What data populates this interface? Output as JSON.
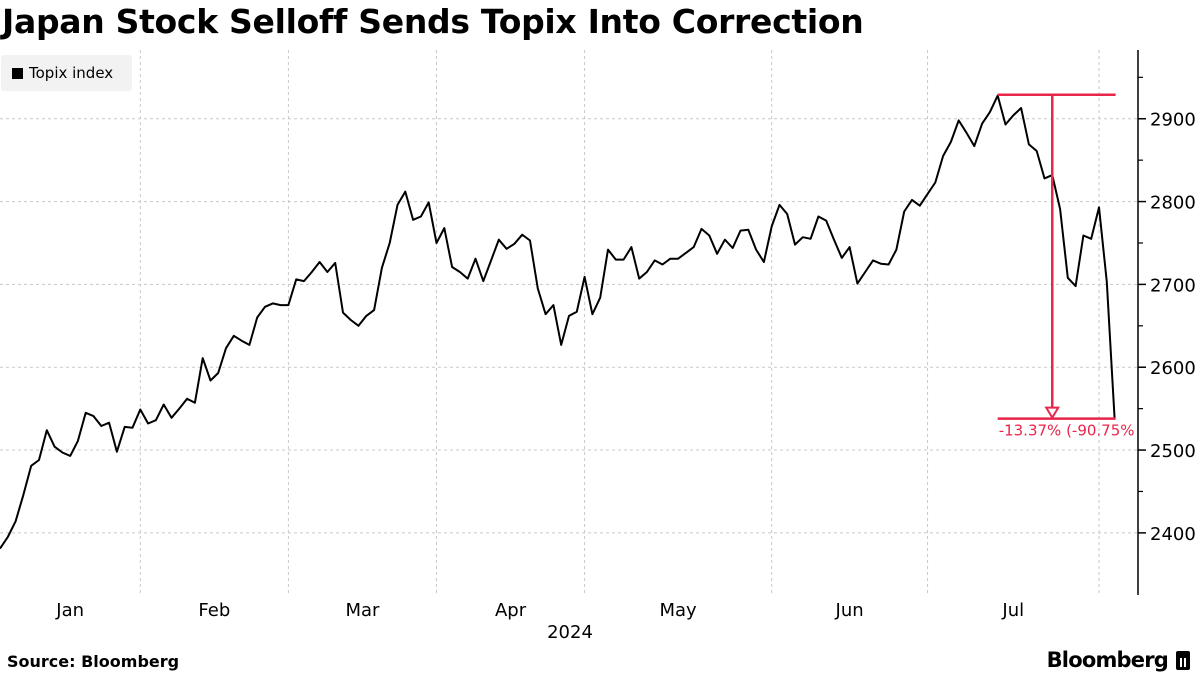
{
  "title": "Japan Stock Selloff Sends Topix Into Correction",
  "source": "Source: Bloomberg",
  "logo": "Bloomberg",
  "colors": {
    "line": "#000000",
    "annotation": "#e8254a",
    "grid": "#c8c8c8",
    "legend_bg": "#f2f2f2"
  },
  "chart_data": {
    "type": "line",
    "title": "Japan Stock Selloff Sends Topix Into Correction",
    "xlabel": "2024",
    "ylabel": "",
    "legend": {
      "entries": [
        "Topix index"
      ],
      "placement": "top-left"
    },
    "grid": true,
    "ylim": [
      2325,
      2983
    ],
    "xlim": [
      0,
      146
    ],
    "y_ticks": [
      2400,
      2500,
      2600,
      2700,
      2800,
      2900
    ],
    "y_minor_ticks": [
      2450,
      2550,
      2650,
      2750,
      2850,
      2950
    ],
    "month_boundaries": [
      18,
      37,
      56,
      75,
      99,
      119,
      141
    ],
    "month_labels": [
      {
        "label": "Jan",
        "from": 0,
        "to": 18
      },
      {
        "label": "Feb",
        "from": 18,
        "to": 37
      },
      {
        "label": "Mar",
        "from": 37,
        "to": 56
      },
      {
        "label": "Apr",
        "from": 56,
        "to": 75
      },
      {
        "label": "May",
        "from": 75,
        "to": 99
      },
      {
        "label": "Jun",
        "from": 99,
        "to": 119
      },
      {
        "label": "Jul",
        "from": 119,
        "to": 141
      }
    ],
    "series": [
      {
        "name": "Topix index",
        "values": [
          2381,
          2395,
          2414,
          2446,
          2481,
          2488,
          2524,
          2504,
          2497,
          2493,
          2511,
          2545,
          2541,
          2529,
          2533,
          2498,
          2528,
          2527,
          2549,
          2532,
          2536,
          2555,
          2539,
          2550,
          2562,
          2557,
          2611,
          2584,
          2593,
          2623,
          2638,
          2632,
          2627,
          2660,
          2673,
          2677,
          2675,
          2675,
          2706,
          2704,
          2715,
          2727,
          2715,
          2726,
          2666,
          2657,
          2650,
          2662,
          2669,
          2720,
          2750,
          2796,
          2812,
          2778,
          2782,
          2799,
          2750,
          2768,
          2721,
          2715,
          2707,
          2731,
          2704,
          2729,
          2754,
          2743,
          2749,
          2760,
          2753,
          2695,
          2664,
          2675,
          2627,
          2662,
          2667,
          2709,
          2664,
          2684,
          2742,
          2730,
          2730,
          2745,
          2707,
          2715,
          2729,
          2724,
          2731,
          2731,
          2738,
          2745,
          2767,
          2759,
          2737,
          2754,
          2744,
          2765,
          2766,
          2742,
          2727,
          2770,
          2796,
          2785,
          2748,
          2757,
          2755,
          2782,
          2777,
          2754,
          2732,
          2745,
          2701,
          2715,
          2729,
          2725,
          2724,
          2742,
          2788,
          2802,
          2795,
          2809,
          2823,
          2855,
          2872,
          2898,
          2883,
          2867,
          2894,
          2908,
          2928,
          2893,
          2904,
          2913,
          2869,
          2861,
          2828,
          2832,
          2791,
          2708,
          2698,
          2759,
          2755,
          2793,
          2703,
          2538
        ]
      }
    ],
    "annotation": {
      "from_index": 128,
      "to_index": 143,
      "high": 2929,
      "low": 2538,
      "arrow_index": 135,
      "label": "-13.37% (-90.75%"
    }
  }
}
